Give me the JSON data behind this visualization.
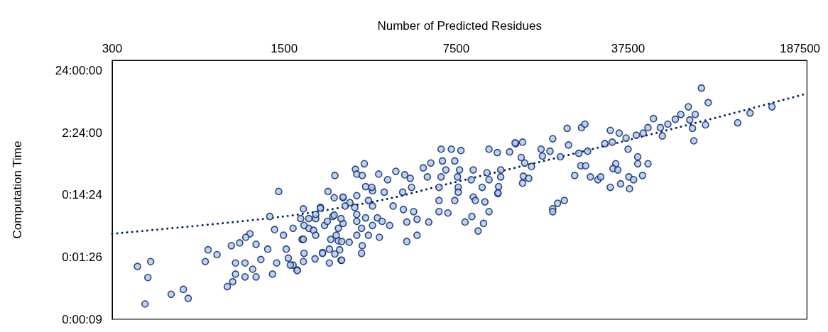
{
  "chart_data": {
    "type": "scatter",
    "xlabel": "Number of Predicted Residues",
    "ylabel": "Computation Time",
    "log": "xy",
    "grid": false,
    "marker": "circle",
    "xlim": [
      300,
      200000
    ],
    "xticks": [
      300,
      1500,
      7500,
      37500,
      187500
    ],
    "ylim": [
      8.64,
      127000
    ],
    "yticks": [
      {
        "value": 8.64,
        "label": "0:00:09"
      },
      {
        "value": 86.4,
        "label": "0:01:26"
      },
      {
        "value": 864,
        "label": "0:14:24"
      },
      {
        "value": 8640,
        "label": "2:24:00"
      },
      {
        "value": 86400,
        "label": "24:00:00"
      }
    ],
    "series": [
      {
        "color": "#b4c7e7",
        "x": [
          380,
          430,
          419,
          408,
          521,
          584,
          611,
          717,
          736,
          800,
          1425,
          2411,
          881,
          927,
          915,
          989,
          1089,
          1047,
          951,
          1040,
          951,
          1040,
          1117,
          1153,
          1311,
          1371,
          1490,
          1630,
          1795,
          1750,
          1153,
          1286,
          1398,
          1559,
          1694,
          1806,
          2002,
          2148,
          2290,
          2554,
          2261,
          2395,
          2603,
          2107,
          2015,
          2190,
          2365,
          2490,
          2490,
          1889,
          1773,
          1206,
          1345,
          1630,
          1976,
          3176,
          2922,
          2959,
          3115,
          3633,
          3950,
          4266,
          4637,
          4880,
          5512,
          5916,
          6514,
          7171,
          7844,
          10200,
          11020,
          12370,
          13100,
          6597,
          7405,
          6812,
          7743,
          8804,
          10010,
          11380,
          5729,
          6514,
          7596,
          8637,
          10200,
          11380,
          6389,
          7646,
          9568,
          11160,
          7646,
          11090,
          8804,
          8977,
          6389,
          7405,
          9817,
          6389,
          6945,
          10200,
          8693,
          8151,
          9693,
          9210,
          5802,
          5203,
          5203,
          4726,
          4726,
          5039,
          4577,
          4158,
          4027,
          3429,
          3825,
          4548,
          4943,
          3215,
          3407,
          2959,
          2775,
          2603,
          3300,
          3429,
          2903,
          2654,
          2959,
          3215,
          3587,
          2959,
          2603,
          3095,
          3429,
          3752,
          2959,
          3300,
          3657,
          3115,
          3095,
          2570,
          2442,
          2320,
          2757,
          2521,
          2411,
          2570,
          2290,
          2148,
          2015,
          1795,
          1795,
          1694,
          1589,
          1529,
          1806,
          2015,
          1889,
          2246,
          2395,
          2554,
          2107,
          13020,
          13970,
          13790,
          14240,
          15180,
          14060,
          14800,
          13970,
          11090,
          16610,
          16820,
          18050,
          18520,
          19880,
          21190,
          21470,
          22740,
          24090,
          25190,
          23630,
          24240,
          25030,
          25680,
          26350,
          28280,
          29020,
          30160,
          32350,
          31740,
          34500,
          36780,
          37500,
          41030,
          41030,
          45160,
          42910,
          33410,
          32560,
          34060,
          31740,
          34950,
          37750,
          39480,
          37990,
          40500,
          43180,
          45160,
          47530,
          50690,
          51670,
          54390,
          58340,
          61420,
          65920,
          66770,
          70290,
          68500,
          69390,
          77360,
          74450,
          79380,
          104600,
          117400,
          144100,
          18520,
          18520,
          19380,
          20650
        ],
        "values": [
          61.0,
          73.1,
          40.5,
          15.2,
          21.8,
          26.1,
          18.7,
          73.1,
          113,
          94.5,
          982,
          1776,
          28.9,
          34.7,
          132,
          146,
          205,
          180,
          69.4,
          69.4,
          46.0,
          41.5,
          55.1,
          41.5,
          389,
          239,
          194,
          251,
          516,
          360,
          139,
          116,
          69.4,
          83.1,
          53.7,
          99.5,
          81.0,
          102,
          116,
          76.9,
          982,
          780,
          780,
          544,
          360,
          279,
          389,
          251,
          158,
          251,
          167,
          78.9,
          46.0,
          64.3,
          233,
          2750,
          2238,
          1869,
          1776,
          1869,
          1522,
          2072,
          1822,
          1602,
          2356,
          2821,
          4720,
          4720,
          4482,
          4720,
          4150,
          4257,
          5800,
          3047,
          3047,
          2182,
          2182,
          2182,
          1968,
          2182,
          1687,
          1687,
          1687,
          1522,
          1522,
          1687,
          1147,
          1147,
          1147,
          1176,
          958,
          910,
          800,
          703,
          703,
          703,
          668,
          466,
          443,
          466,
          389,
          317,
          301,
          227,
          317,
          351,
          194,
          317,
          154,
          466,
          503,
          573,
          279,
          1008,
          958,
          958,
          1147,
          1176,
          1147,
          842,
          651,
          800,
          703,
          573,
          544,
          573,
          420,
          370,
          370,
          325,
          301,
          251,
          279,
          325,
          194,
          194,
          180,
          132,
          99.5,
          154,
          194,
          167,
          150,
          113,
          97.0,
          76.9,
          69.4,
          99.5,
          194,
          167,
          73.1,
          52.3,
          64.3,
          116,
          279,
          420,
          360,
          325,
          410,
          360,
          530,
          5951,
          6105,
          3466,
          2821,
          2481,
          1730,
          1602,
          1338,
          933,
          4720,
          3650,
          4370,
          6944,
          3556,
          10210,
          5506,
          1776,
          2545,
          2545,
          4044,
          10470,
          11920,
          4370,
          1687,
          1522,
          1687,
          5800,
          6105,
          9454,
          8531,
          7125,
          4720,
          3556,
          2750,
          2750,
          1776,
          2750,
          2297,
          2182,
          1147,
          1304,
          1687,
          1522,
          1089,
          7895,
          8531,
          10470,
          14640,
          10470,
          7695,
          11920,
          14270,
          17080,
          22670,
          13910,
          17080,
          10210,
          6427,
          11610,
          45400,
          26450,
          12550,
          17980,
          22670,
          516,
          466,
          635,
          703
        ]
      },
      {
        "type": "line",
        "color": "#002060",
        "line_style": "dotted",
        "marker": "none",
        "x": [
          300,
          1490,
          3899,
          6945,
          23480,
          84670,
          200000
        ],
        "values": [
          205,
          389,
          740,
          1304,
          4150,
          15020,
          37000
        ]
      }
    ]
  }
}
